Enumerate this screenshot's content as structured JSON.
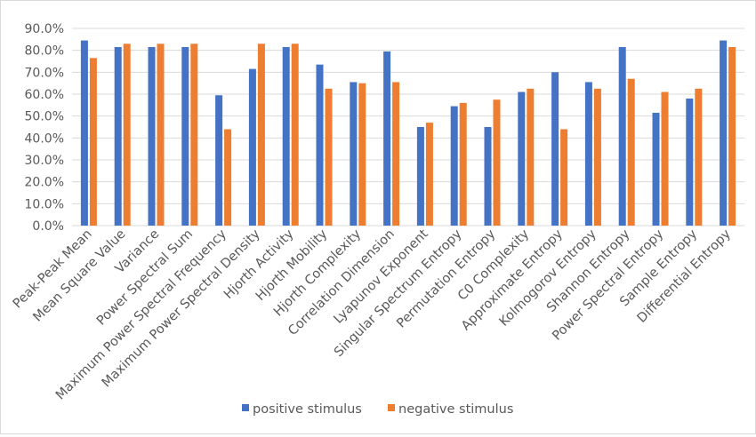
{
  "chart_data": {
    "type": "bar",
    "categories": [
      "Peak-Peak Mean",
      "Mean Square Value",
      "Variance",
      "Power Spectral Sum",
      "Maximum Power Spectral Frequency",
      "Maximum Power Spectral Density",
      "Hjorth Activity",
      "Hjorth Mobility",
      "Hjorth Complexity",
      "Correlation Dimension",
      "Lyapunov Exponent",
      "Singular Spectrum Entropy",
      "Permutation Entropy",
      "C0 Complexity",
      "Approximate Entropy",
      "Kolmogorov Entropy",
      "Shannon Entropy",
      "Power Spectral Entropy",
      "Sample Entropy",
      "Differential Entropy"
    ],
    "series": [
      {
        "name": "positive stimulus",
        "color": "#4472c4",
        "values": [
          84.5,
          81.5,
          81.5,
          81.5,
          59.5,
          71.5,
          81.5,
          73.5,
          65.5,
          79.5,
          45.0,
          54.5,
          45.0,
          61.0,
          70.0,
          65.5,
          81.5,
          51.5,
          58.0,
          84.5
        ]
      },
      {
        "name": "negative stimulus",
        "color": "#ed7d31",
        "values": [
          76.5,
          83.0,
          83.0,
          83.0,
          44.0,
          83.0,
          83.0,
          62.5,
          65.0,
          65.5,
          47.0,
          56.0,
          57.5,
          62.5,
          44.0,
          62.5,
          67.0,
          61.0,
          62.5,
          81.5
        ]
      }
    ],
    "ylim": [
      0,
      90
    ],
    "yticks": [
      "0.0%",
      "10.0%",
      "20.0%",
      "30.0%",
      "40.0%",
      "50.0%",
      "60.0%",
      "70.0%",
      "80.0%",
      "90.0%"
    ],
    "grid": true,
    "legend": "bottom"
  }
}
